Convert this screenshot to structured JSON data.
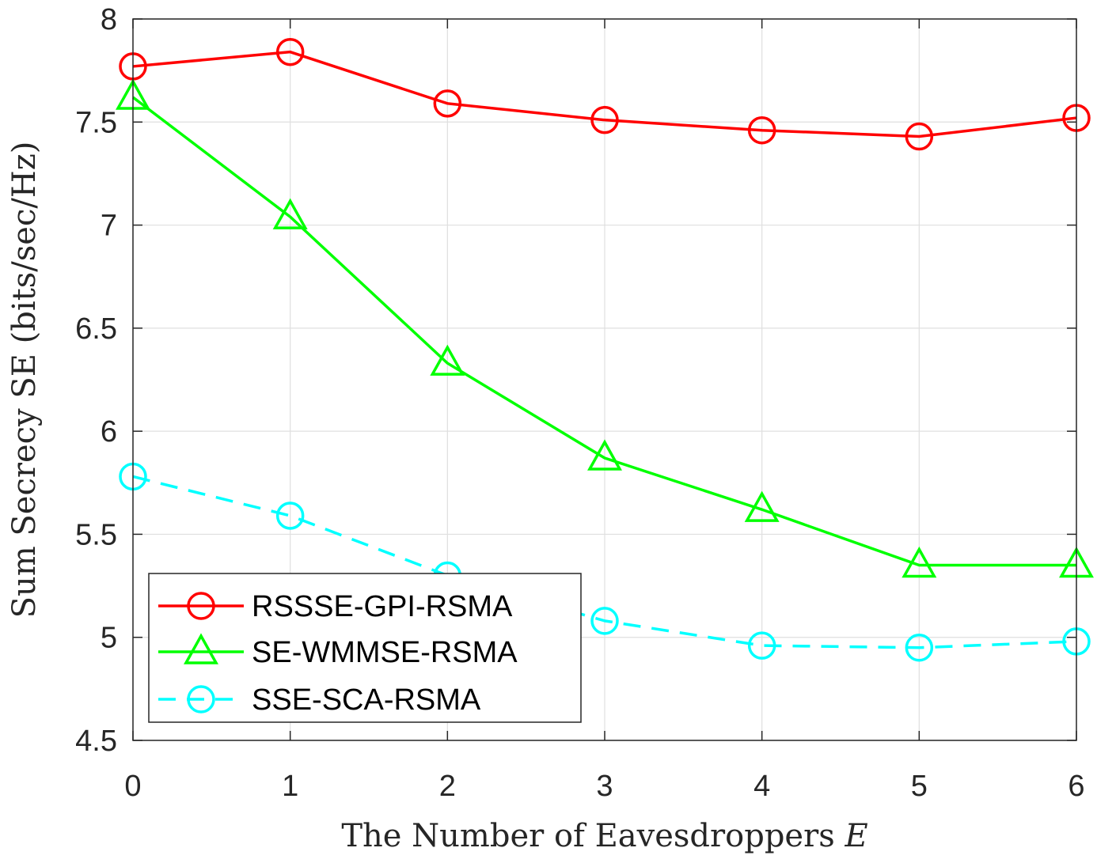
{
  "chart_data": {
    "type": "line",
    "title": "",
    "xlabel": "The Number of Eavesdroppers",
    "xlabel_symbol": "E",
    "ylabel": "Sum Secrecy SE (bits/sec/Hz)",
    "x": [
      0,
      1,
      2,
      3,
      4,
      5,
      6
    ],
    "xlim": [
      0,
      6
    ],
    "ylim": [
      4.5,
      8
    ],
    "xticks": [
      "0",
      "1",
      "2",
      "3",
      "4",
      "5",
      "6"
    ],
    "yticks": [
      "4.5",
      "5",
      "5.5",
      "6",
      "6.5",
      "7",
      "7.5",
      "8"
    ],
    "grid": true,
    "legend_position": "bottom-left",
    "series": [
      {
        "name": "RSSSE-GPI-RSMA",
        "color": "#ff0000",
        "marker": "circle",
        "line": "solid",
        "values": [
          7.77,
          7.84,
          7.59,
          7.51,
          7.46,
          7.43,
          7.52
        ]
      },
      {
        "name": "SE-WMMSE-RSMA",
        "color": "#00ff00",
        "marker": "triangle",
        "line": "solid",
        "values": [
          7.62,
          7.04,
          6.33,
          5.87,
          5.62,
          5.35,
          5.35
        ]
      },
      {
        "name": "SSE-SCA-RSMA",
        "color": "#00ffff",
        "marker": "circle",
        "line": "dashed",
        "values": [
          5.78,
          5.59,
          5.3,
          5.08,
          4.96,
          4.95,
          4.98
        ]
      }
    ]
  }
}
